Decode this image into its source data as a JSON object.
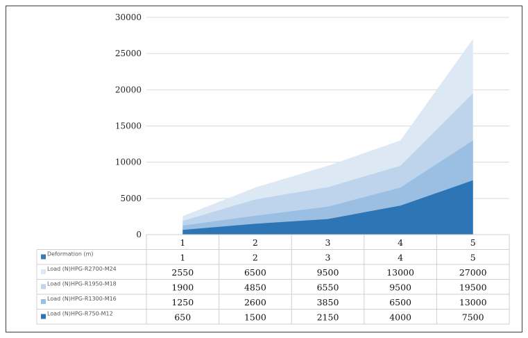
{
  "chart_data": {
    "type": "area",
    "stacked": false,
    "categories": [
      "1",
      "2",
      "3",
      "4",
      "5"
    ],
    "ylim": [
      0,
      30000
    ],
    "yticks": [
      0,
      5000,
      10000,
      15000,
      20000,
      25000,
      30000
    ],
    "grid": true,
    "legend_position": "data-table-left",
    "title": "",
    "xlabel": "",
    "ylabel": "",
    "series": [
      {
        "name": "Deformation (m)",
        "values": [
          1,
          2,
          3,
          4,
          5
        ],
        "color": "#3a78b6",
        "plotted": false
      },
      {
        "name": "Load (N)HPG-R2700-M24",
        "values": [
          2550,
          6500,
          9500,
          13000,
          27000
        ],
        "color": "#dde8f5"
      },
      {
        "name": "Load (N)HPG-R1950-M18",
        "values": [
          1900,
          4850,
          6550,
          9500,
          19500
        ],
        "color": "#bdd4ec"
      },
      {
        "name": "Load (N)HPG-R1300-M16",
        "values": [
          1250,
          2600,
          3850,
          6500,
          13000
        ],
        "color": "#9bbfe3"
      },
      {
        "name": "Load (N)HPG-R750-M12",
        "values": [
          650,
          1500,
          2150,
          4000,
          7500
        ],
        "color": "#2e75b6"
      }
    ]
  }
}
